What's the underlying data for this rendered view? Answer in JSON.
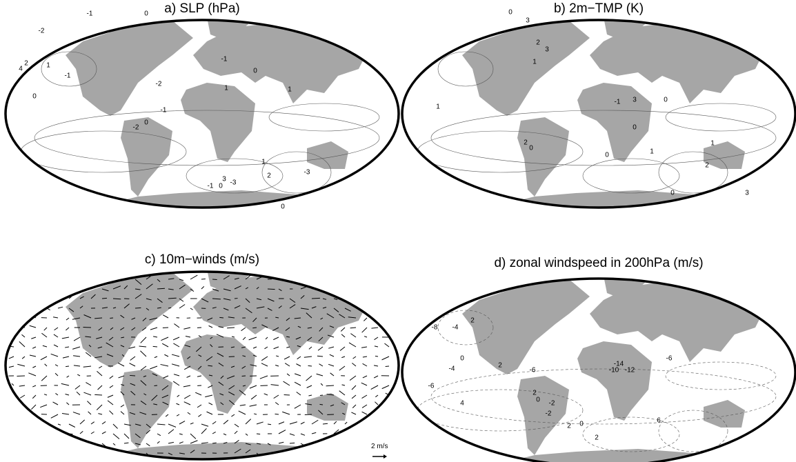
{
  "panels": [
    {
      "title": "a) SLP (hPa)",
      "contour_labels": [
        -2,
        1,
        0,
        -1,
        4,
        2,
        -1,
        0,
        -1,
        -2,
        0,
        -2,
        1,
        0,
        -1,
        -3,
        3,
        2,
        1,
        -1,
        0,
        0,
        -3,
        1
      ]
    },
    {
      "title": "b) 2m−TMP (K)",
      "contour_labels": [
        0,
        3,
        2,
        1,
        3,
        -1,
        0,
        3,
        0,
        1,
        2,
        0,
        1,
        0,
        1,
        0,
        3,
        2
      ]
    },
    {
      "title": "c) 10m−winds (m/s)",
      "scale_label": "2 m/s"
    },
    {
      "title": "d) zonal windspeed in 200hPa (m/s)",
      "contour_labels": [
        -8,
        -4,
        2,
        0,
        2,
        -6,
        -10,
        -14,
        -12,
        -6,
        -4,
        -6,
        2,
        0,
        -2,
        4,
        -2,
        2,
        6,
        0,
        2
      ]
    }
  ]
}
